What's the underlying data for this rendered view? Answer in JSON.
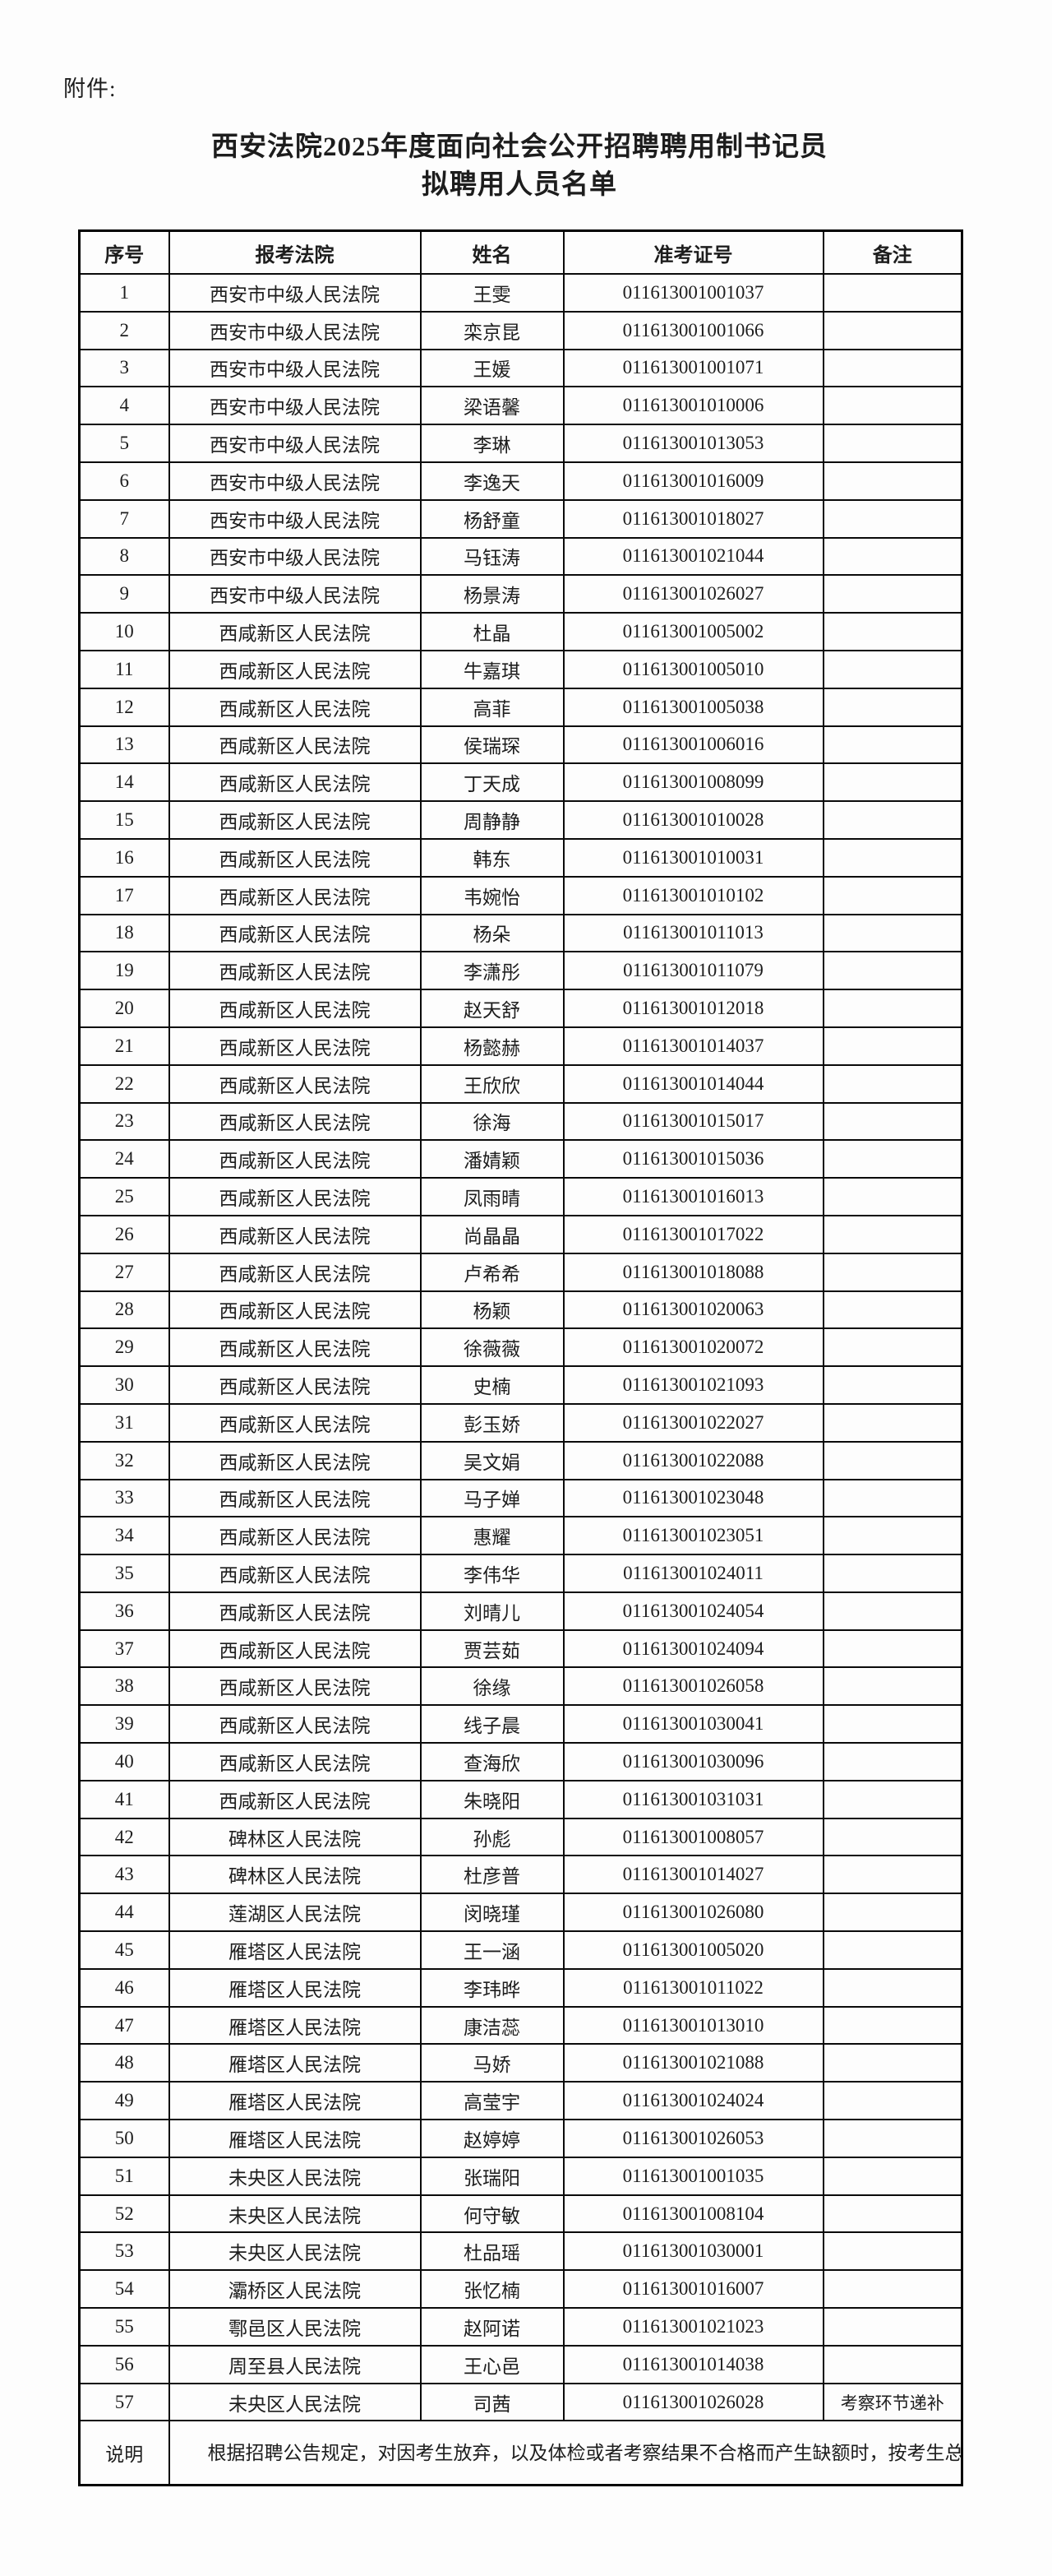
{
  "colors": {
    "paper": "#fdfdfd",
    "ink": "#1d1d1d",
    "table_border": "#000000"
  },
  "attachment_label": "附件:",
  "title": {
    "line1": "西安法院2025年度面向社会公开招聘聘用制书记员",
    "line2": "拟聘用人员名单"
  },
  "table": {
    "columns": [
      "序号",
      "报考法院",
      "姓名",
      "准考证号",
      "备注"
    ],
    "rows": [
      {
        "no": "1",
        "court": "西安市中级人民法院",
        "name": "王雯",
        "ticket": "011613001001037",
        "remark": ""
      },
      {
        "no": "2",
        "court": "西安市中级人民法院",
        "name": "栾京昆",
        "ticket": "011613001001066",
        "remark": ""
      },
      {
        "no": "3",
        "court": "西安市中级人民法院",
        "name": "王媛",
        "ticket": "011613001001071",
        "remark": ""
      },
      {
        "no": "4",
        "court": "西安市中级人民法院",
        "name": "梁语馨",
        "ticket": "011613001010006",
        "remark": ""
      },
      {
        "no": "5",
        "court": "西安市中级人民法院",
        "name": "李琳",
        "ticket": "011613001013053",
        "remark": ""
      },
      {
        "no": "6",
        "court": "西安市中级人民法院",
        "name": "李逸天",
        "ticket": "011613001016009",
        "remark": ""
      },
      {
        "no": "7",
        "court": "西安市中级人民法院",
        "name": "杨舒童",
        "ticket": "011613001018027",
        "remark": ""
      },
      {
        "no": "8",
        "court": "西安市中级人民法院",
        "name": "马钰涛",
        "ticket": "011613001021044",
        "remark": ""
      },
      {
        "no": "9",
        "court": "西安市中级人民法院",
        "name": "杨景涛",
        "ticket": "011613001026027",
        "remark": ""
      },
      {
        "no": "10",
        "court": "西咸新区人民法院",
        "name": "杜晶",
        "ticket": "011613001005002",
        "remark": ""
      },
      {
        "no": "11",
        "court": "西咸新区人民法院",
        "name": "牛嘉琪",
        "ticket": "011613001005010",
        "remark": ""
      },
      {
        "no": "12",
        "court": "西咸新区人民法院",
        "name": "高菲",
        "ticket": "011613001005038",
        "remark": ""
      },
      {
        "no": "13",
        "court": "西咸新区人民法院",
        "name": "侯瑞琛",
        "ticket": "011613001006016",
        "remark": ""
      },
      {
        "no": "14",
        "court": "西咸新区人民法院",
        "name": "丁天成",
        "ticket": "011613001008099",
        "remark": ""
      },
      {
        "no": "15",
        "court": "西咸新区人民法院",
        "name": "周静静",
        "ticket": "011613001010028",
        "remark": ""
      },
      {
        "no": "16",
        "court": "西咸新区人民法院",
        "name": "韩东",
        "ticket": "011613001010031",
        "remark": ""
      },
      {
        "no": "17",
        "court": "西咸新区人民法院",
        "name": "韦婉怡",
        "ticket": "011613001010102",
        "remark": ""
      },
      {
        "no": "18",
        "court": "西咸新区人民法院",
        "name": "杨朵",
        "ticket": "011613001011013",
        "remark": ""
      },
      {
        "no": "19",
        "court": "西咸新区人民法院",
        "name": "李潇彤",
        "ticket": "011613001011079",
        "remark": ""
      },
      {
        "no": "20",
        "court": "西咸新区人民法院",
        "name": "赵天舒",
        "ticket": "011613001012018",
        "remark": ""
      },
      {
        "no": "21",
        "court": "西咸新区人民法院",
        "name": "杨懿赫",
        "ticket": "011613001014037",
        "remark": ""
      },
      {
        "no": "22",
        "court": "西咸新区人民法院",
        "name": "王欣欣",
        "ticket": "011613001014044",
        "remark": ""
      },
      {
        "no": "23",
        "court": "西咸新区人民法院",
        "name": "徐海",
        "ticket": "011613001015017",
        "remark": ""
      },
      {
        "no": "24",
        "court": "西咸新区人民法院",
        "name": "潘婧颖",
        "ticket": "011613001015036",
        "remark": ""
      },
      {
        "no": "25",
        "court": "西咸新区人民法院",
        "name": "凤雨晴",
        "ticket": "011613001016013",
        "remark": ""
      },
      {
        "no": "26",
        "court": "西咸新区人民法院",
        "name": "尚晶晶",
        "ticket": "011613001017022",
        "remark": ""
      },
      {
        "no": "27",
        "court": "西咸新区人民法院",
        "name": "卢希希",
        "ticket": "011613001018088",
        "remark": ""
      },
      {
        "no": "28",
        "court": "西咸新区人民法院",
        "name": "杨颖",
        "ticket": "011613001020063",
        "remark": ""
      },
      {
        "no": "29",
        "court": "西咸新区人民法院",
        "name": "徐薇薇",
        "ticket": "011613001020072",
        "remark": ""
      },
      {
        "no": "30",
        "court": "西咸新区人民法院",
        "name": "史楠",
        "ticket": "011613001021093",
        "remark": ""
      },
      {
        "no": "31",
        "court": "西咸新区人民法院",
        "name": "彭玉娇",
        "ticket": "011613001022027",
        "remark": ""
      },
      {
        "no": "32",
        "court": "西咸新区人民法院",
        "name": "吴文娟",
        "ticket": "011613001022088",
        "remark": ""
      },
      {
        "no": "33",
        "court": "西咸新区人民法院",
        "name": "马子婵",
        "ticket": "011613001023048",
        "remark": ""
      },
      {
        "no": "34",
        "court": "西咸新区人民法院",
        "name": "惠耀",
        "ticket": "011613001023051",
        "remark": ""
      },
      {
        "no": "35",
        "court": "西咸新区人民法院",
        "name": "李伟华",
        "ticket": "011613001024011",
        "remark": ""
      },
      {
        "no": "36",
        "court": "西咸新区人民法院",
        "name": "刘晴儿",
        "ticket": "011613001024054",
        "remark": ""
      },
      {
        "no": "37",
        "court": "西咸新区人民法院",
        "name": "贾芸茹",
        "ticket": "011613001024094",
        "remark": ""
      },
      {
        "no": "38",
        "court": "西咸新区人民法院",
        "name": "徐缘",
        "ticket": "011613001026058",
        "remark": ""
      },
      {
        "no": "39",
        "court": "西咸新区人民法院",
        "name": "线子晨",
        "ticket": "011613001030041",
        "remark": ""
      },
      {
        "no": "40",
        "court": "西咸新区人民法院",
        "name": "查海欣",
        "ticket": "011613001030096",
        "remark": ""
      },
      {
        "no": "41",
        "court": "西咸新区人民法院",
        "name": "朱晓阳",
        "ticket": "011613001031031",
        "remark": ""
      },
      {
        "no": "42",
        "court": "碑林区人民法院",
        "name": "孙彪",
        "ticket": "011613001008057",
        "remark": ""
      },
      {
        "no": "43",
        "court": "碑林区人民法院",
        "name": "杜彦普",
        "ticket": "011613001014027",
        "remark": ""
      },
      {
        "no": "44",
        "court": "莲湖区人民法院",
        "name": "闵晓瑾",
        "ticket": "011613001026080",
        "remark": ""
      },
      {
        "no": "45",
        "court": "雁塔区人民法院",
        "name": "王一涵",
        "ticket": "011613001005020",
        "remark": ""
      },
      {
        "no": "46",
        "court": "雁塔区人民法院",
        "name": "李玮晔",
        "ticket": "011613001011022",
        "remark": ""
      },
      {
        "no": "47",
        "court": "雁塔区人民法院",
        "name": "康洁蕊",
        "ticket": "011613001013010",
        "remark": ""
      },
      {
        "no": "48",
        "court": "雁塔区人民法院",
        "name": "马娇",
        "ticket": "011613001021088",
        "remark": ""
      },
      {
        "no": "49",
        "court": "雁塔区人民法院",
        "name": "高莹宇",
        "ticket": "011613001024024",
        "remark": ""
      },
      {
        "no": "50",
        "court": "雁塔区人民法院",
        "name": "赵婷婷",
        "ticket": "011613001026053",
        "remark": ""
      },
      {
        "no": "51",
        "court": "未央区人民法院",
        "name": "张瑞阳",
        "ticket": "011613001001035",
        "remark": ""
      },
      {
        "no": "52",
        "court": "未央区人民法院",
        "name": "何守敏",
        "ticket": "011613001008104",
        "remark": ""
      },
      {
        "no": "53",
        "court": "未央区人民法院",
        "name": "杜品瑶",
        "ticket": "011613001030001",
        "remark": ""
      },
      {
        "no": "54",
        "court": "灞桥区人民法院",
        "name": "张忆楠",
        "ticket": "011613001016007",
        "remark": ""
      },
      {
        "no": "55",
        "court": "鄠邑区人民法院",
        "name": "赵阿诺",
        "ticket": "011613001021023",
        "remark": ""
      },
      {
        "no": "56",
        "court": "周至县人民法院",
        "name": "王心邑",
        "ticket": "011613001014038",
        "remark": ""
      },
      {
        "no": "57",
        "court": "未央区人民法院",
        "name": "司茜",
        "ticket": "011613001026028",
        "remark": "考察环节递补"
      }
    ],
    "note": {
      "label": "说明",
      "text": "根据招聘公告规定，对因考生放弃，以及体检或者考察结果不合格而产生缺额时，按考生总成绩排名依次实施递补。"
    }
  }
}
